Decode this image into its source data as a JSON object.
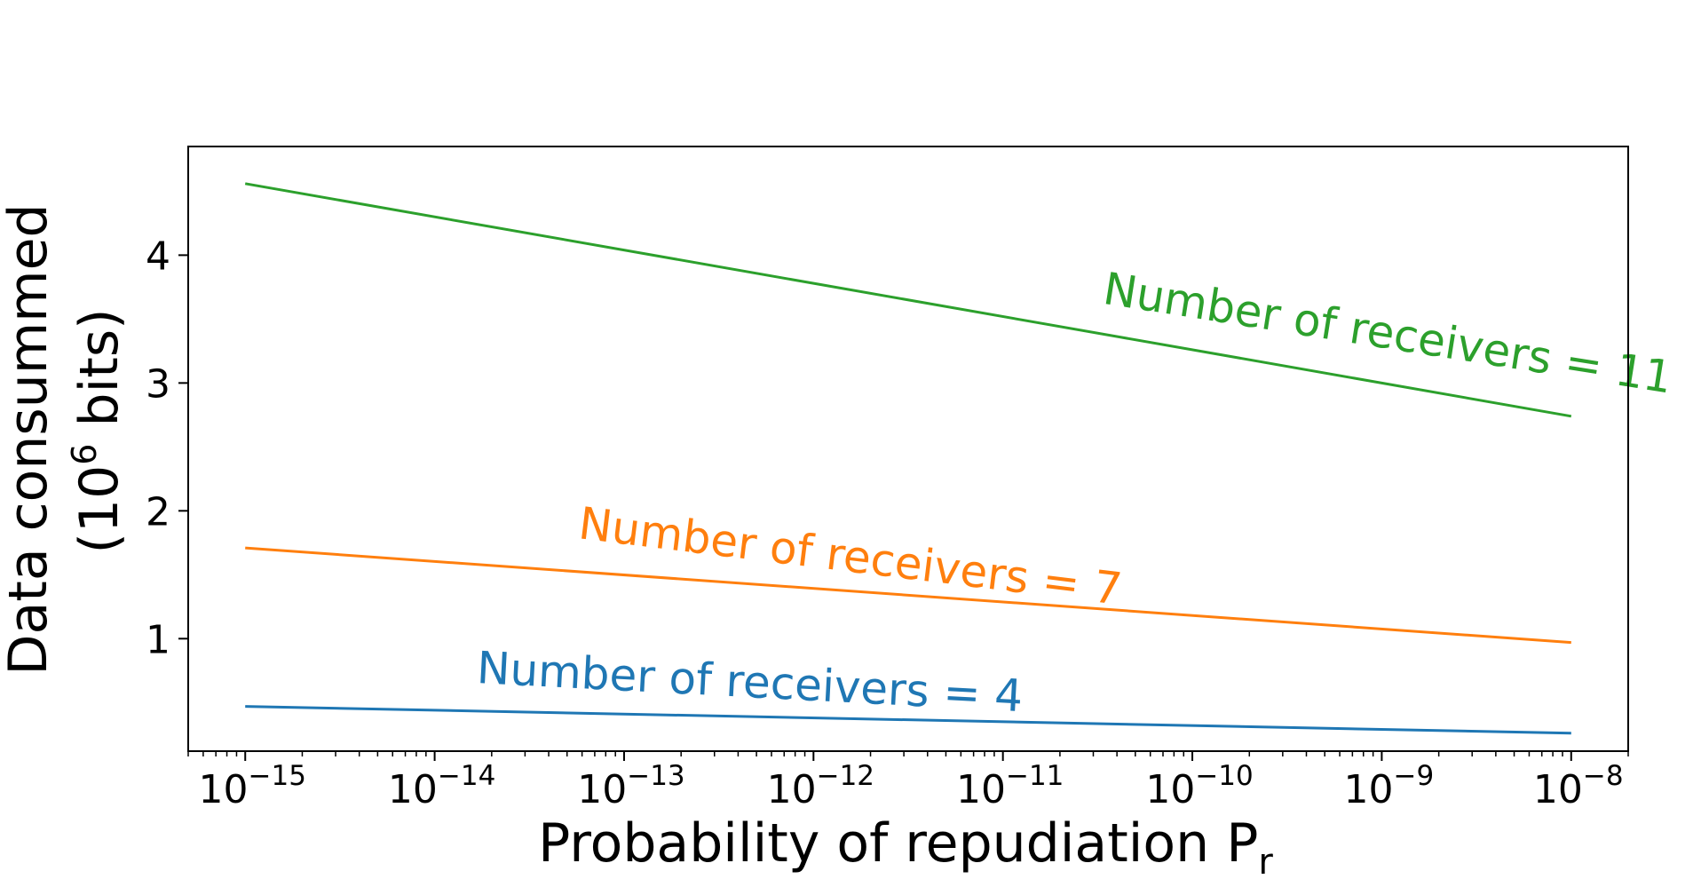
{
  "chart_data": {
    "type": "line",
    "xscale": "log",
    "xlim": [
      5e-16,
      2e-08
    ],
    "ylim": [
      0.12,
      4.85
    ],
    "xlabel": "Probability of repudiation P",
    "xlabel_sub": "r",
    "ylabel_line1": "Data consummed",
    "ylabel_line2_pre": "(10",
    "ylabel_line2_sup": "6",
    "ylabel_line2_post": " bits)",
    "x_ticks": [
      {
        "value": 1e-15,
        "base": "10",
        "exp": "−15"
      },
      {
        "value": 1e-14,
        "base": "10",
        "exp": "−14"
      },
      {
        "value": 1e-13,
        "base": "10",
        "exp": "−13"
      },
      {
        "value": 1e-12,
        "base": "10",
        "exp": "−12"
      },
      {
        "value": 1e-11,
        "base": "10",
        "exp": "−11"
      },
      {
        "value": 1e-10,
        "base": "10",
        "exp": "−10"
      },
      {
        "value": 1e-09,
        "base": "10",
        "exp": "−9"
      },
      {
        "value": 1e-08,
        "base": "10",
        "exp": "−8"
      }
    ],
    "y_ticks": [
      {
        "value": 1,
        "label": "1"
      },
      {
        "value": 2,
        "label": "2"
      },
      {
        "value": 3,
        "label": "3"
      },
      {
        "value": 4,
        "label": "4"
      }
    ],
    "grid": false,
    "legend": "none",
    "series": [
      {
        "label": "Number of receivers = 4",
        "color": "#1f77b4",
        "x": [
          1e-15,
          1e-08
        ],
        "y": [
          0.47,
          0.26
        ]
      },
      {
        "label": "Number of receivers = 7",
        "color": "#ff7f0e",
        "x": [
          1e-15,
          1e-08
        ],
        "y": [
          1.71,
          0.97
        ]
      },
      {
        "label": "Number of receivers = 11",
        "color": "#2ca02c",
        "x": [
          1e-15,
          1e-08
        ],
        "y": [
          4.56,
          2.74
        ]
      }
    ]
  }
}
